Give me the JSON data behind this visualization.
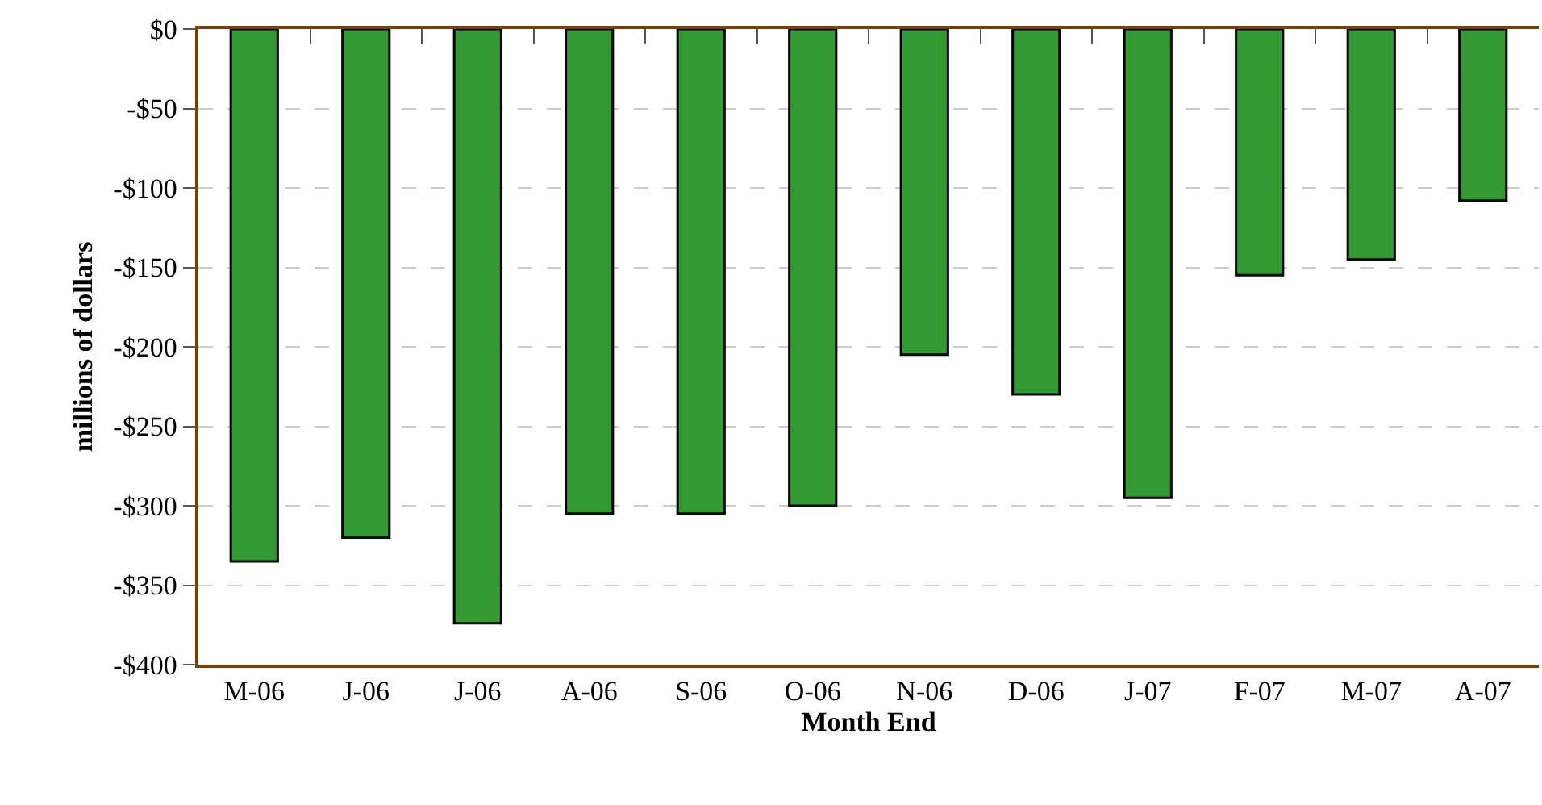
{
  "chart_data": {
    "type": "bar",
    "xlabel": "Month End",
    "ylabel": "millions of dollars",
    "categories": [
      "M-06",
      "J-06",
      "J-06",
      "A-06",
      "S-06",
      "O-06",
      "N-06",
      "D-06",
      "J-07",
      "F-07",
      "M-07",
      "A-07"
    ],
    "values": [
      -335,
      -320,
      -374,
      -305,
      -305,
      -300,
      -205,
      -230,
      -295,
      -155,
      -145,
      -108
    ],
    "color": "#339933",
    "ylim": [
      -400,
      0
    ],
    "yticks": [
      {
        "value": 0,
        "label": "$0"
      },
      {
        "value": -50,
        "label": "-$50"
      },
      {
        "value": -100,
        "label": "-$100"
      },
      {
        "value": -150,
        "label": "-$150"
      },
      {
        "value": -200,
        "label": "-$200"
      },
      {
        "value": -250,
        "label": "-$250"
      },
      {
        "value": -300,
        "label": "-$300"
      },
      {
        "value": -350,
        "label": "-$350"
      },
      {
        "value": -400,
        "label": "-$400"
      }
    ],
    "grid": "y"
  }
}
